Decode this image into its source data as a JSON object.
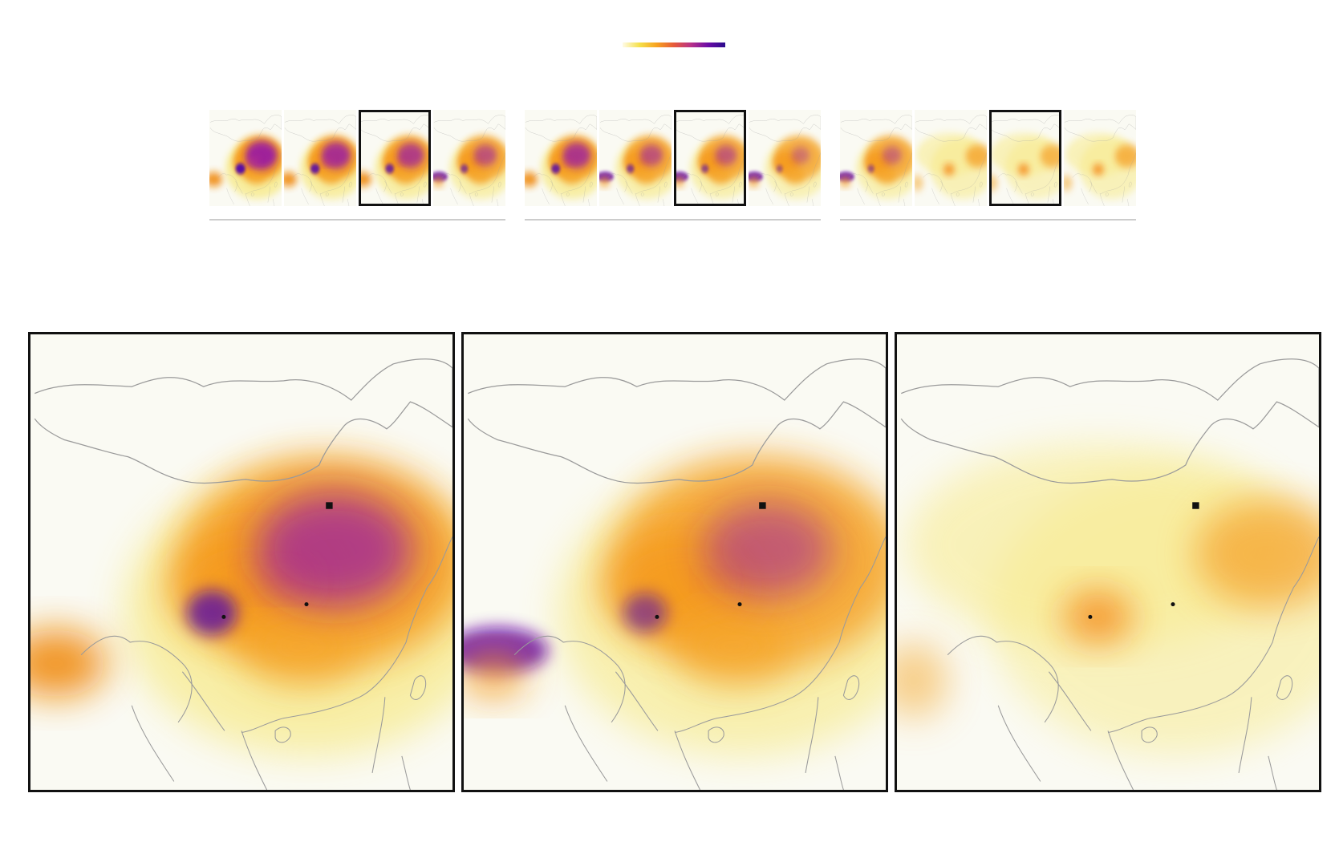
{
  "colorbar": {
    "colors": [
      "#fffbe6",
      "#f5e04a",
      "#f7a21f",
      "#e65a3a",
      "#b83289",
      "#6a0ca6",
      "#2a0c8c"
    ]
  },
  "thumbnail_groups": [
    {
      "thumbnails": [
        {
          "intensity": 1.0,
          "selected": false
        },
        {
          "intensity": 0.9,
          "selected": false
        },
        {
          "intensity": 0.8,
          "selected": true
        },
        {
          "intensity": 0.65,
          "selected": false
        }
      ]
    },
    {
      "thumbnails": [
        {
          "intensity": 0.85,
          "selected": false
        },
        {
          "intensity": 0.65,
          "selected": false
        },
        {
          "intensity": 0.6,
          "selected": true
        },
        {
          "intensity": 0.45,
          "selected": false
        }
      ]
    },
    {
      "thumbnails": [
        {
          "intensity": 0.5,
          "selected": false
        },
        {
          "intensity": 0.4,
          "selected": false
        },
        {
          "intensity": 0.25,
          "selected": true
        },
        {
          "intensity": 0.35,
          "selected": false
        }
      ]
    }
  ],
  "panels": [
    {
      "intensity": 0.8,
      "variant": "heavy"
    },
    {
      "intensity": 0.6,
      "variant": "medium"
    },
    {
      "intensity": 0.25,
      "variant": "light"
    }
  ],
  "markers": [
    {
      "type": "square",
      "label": ""
    },
    {
      "type": "dot",
      "label": ""
    },
    {
      "type": "dot",
      "label": ""
    }
  ]
}
